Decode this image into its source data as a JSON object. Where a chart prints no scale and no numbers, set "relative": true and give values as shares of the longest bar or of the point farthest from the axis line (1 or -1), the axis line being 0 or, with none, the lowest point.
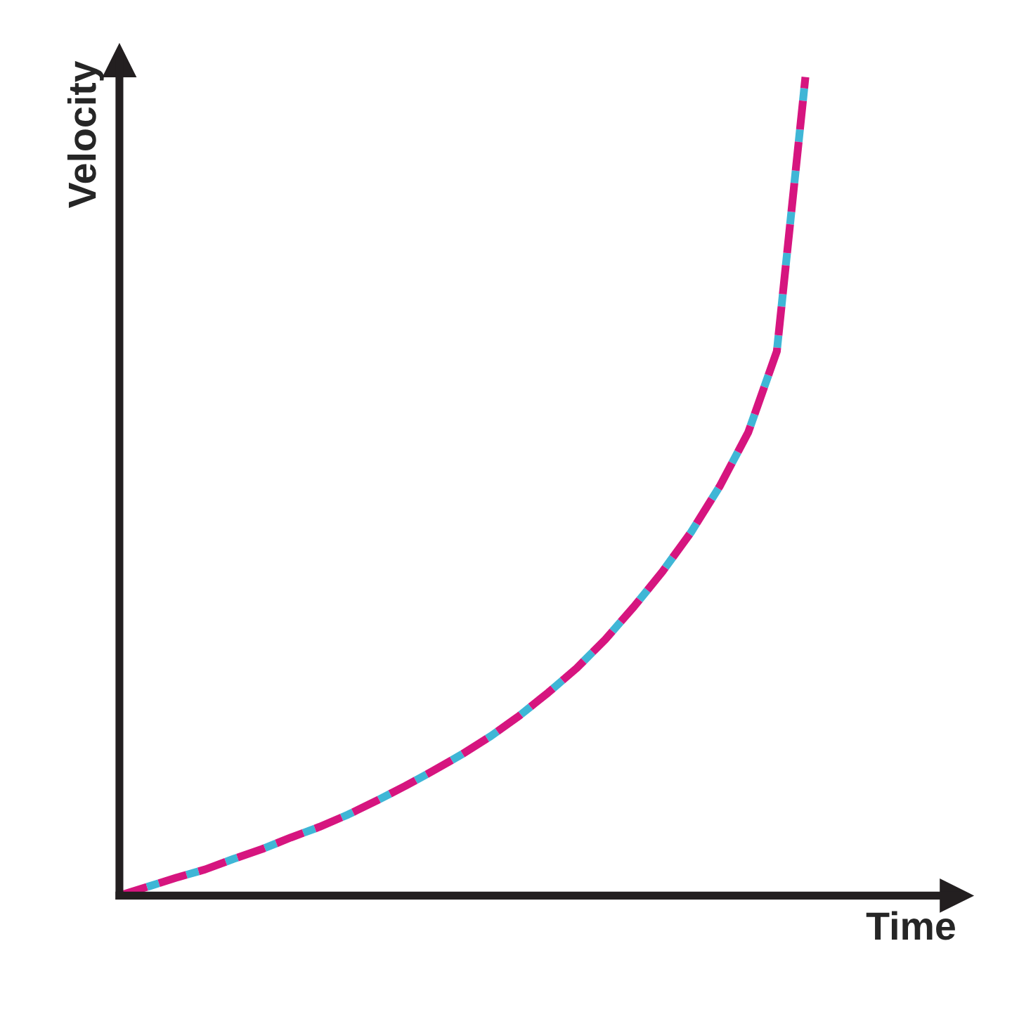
{
  "chart_data": {
    "type": "line",
    "relative": true,
    "xlabel": "Time",
    "ylabel": "Velocity",
    "categories": [
      null,
      null,
      null,
      null,
      null,
      null,
      null,
      null,
      null,
      null,
      null,
      null,
      null,
      null,
      null,
      null,
      null,
      null,
      null,
      null,
      null,
      null,
      null,
      null,
      null
    ],
    "line_style": "dashed",
    "tick_labels": false,
    "series": [
      {
        "color": "#d6157f",
        "values": [
          0,
          0.011,
          0.022,
          0.032,
          0.045,
          0.057,
          0.071,
          0.084,
          0.099,
          0.116,
          0.134,
          0.153,
          0.173,
          0.195,
          0.22,
          0.248,
          0.278,
          0.313,
          0.353,
          0.396,
          0.444,
          0.5,
          0.566,
          0.665,
          1
        ]
      }
    ]
  }
}
